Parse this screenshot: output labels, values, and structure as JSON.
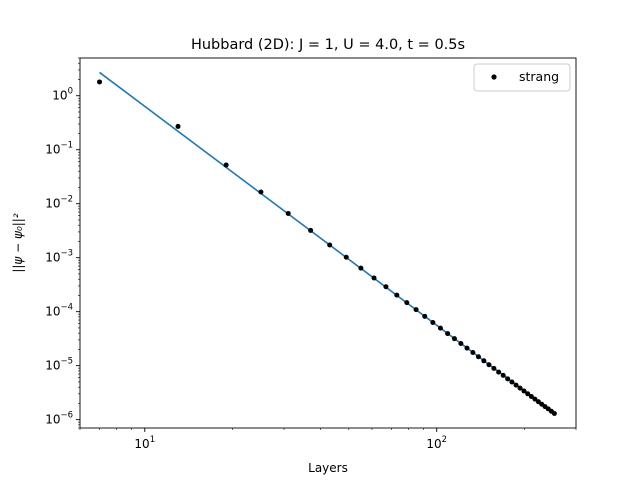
{
  "chart_data": {
    "type": "scatter",
    "title": "Hubbard (2D):  J = 1, U = 4.0, t = 0.5s",
    "xlabel": "Layers",
    "ylabel": "||ψ − ψ₀||²",
    "xscale": "log",
    "yscale": "log",
    "xlim": [
      6.0,
      300.0
    ],
    "ylim": [
      7e-07,
      5.0
    ],
    "grid": false,
    "legend_position": "top-right",
    "x_ticks": [
      {
        "value": 10,
        "base": "10",
        "exp": "1"
      },
      {
        "value": 100,
        "base": "10",
        "exp": "2"
      }
    ],
    "y_ticks": [
      {
        "value": 1.0,
        "base": "10",
        "exp": "0"
      },
      {
        "value": 0.1,
        "base": "10",
        "exp": "−1"
      },
      {
        "value": 0.01,
        "base": "10",
        "exp": "−2"
      },
      {
        "value": 0.001,
        "base": "10",
        "exp": "−3"
      },
      {
        "value": 0.0001,
        "base": "10",
        "exp": "−4"
      },
      {
        "value": 1e-05,
        "base": "10",
        "exp": "−5"
      },
      {
        "value": 1e-06,
        "base": "10",
        "exp": "−6"
      }
    ],
    "series": [
      {
        "name": "strang",
        "marker": "point",
        "color": "#000000",
        "x": [
          7,
          13,
          19,
          25,
          31,
          37,
          43,
          49,
          55,
          61,
          67,
          73,
          79,
          85,
          91,
          97,
          103,
          109,
          115,
          121,
          127,
          133,
          139,
          145,
          151,
          157,
          163,
          169,
          175,
          181,
          187,
          193,
          199,
          205,
          211,
          217,
          223,
          229,
          235,
          241,
          247,
          253
        ],
        "y": [
          1.8,
          0.27,
          0.052,
          0.0165,
          0.0066,
          0.0032,
          0.00172,
          0.00102,
          0.00064,
          0.00042,
          0.00029,
          0.000203,
          0.000147,
          0.000109,
          8.2e-05,
          6.3e-05,
          4.95e-05,
          3.93e-05,
          3.16e-05,
          2.57e-05,
          2.11e-05,
          1.75e-05,
          1.46e-05,
          1.23e-05,
          1.04e-05,
          8.9e-06,
          7.6e-06,
          6.6e-06,
          5.7e-06,
          4.98e-06,
          4.36e-06,
          3.84e-06,
          3.39e-06,
          3.01e-06,
          2.68e-06,
          2.4e-06,
          2.15e-06,
          1.93e-06,
          1.74e-06,
          1.58e-06,
          1.43e-06,
          1.3e-06
        ]
      }
    ],
    "fit_line": {
      "color": "#1f77b4",
      "x": [
        7,
        253
      ],
      "y": [
        2.7,
        1.3e-06
      ]
    }
  }
}
